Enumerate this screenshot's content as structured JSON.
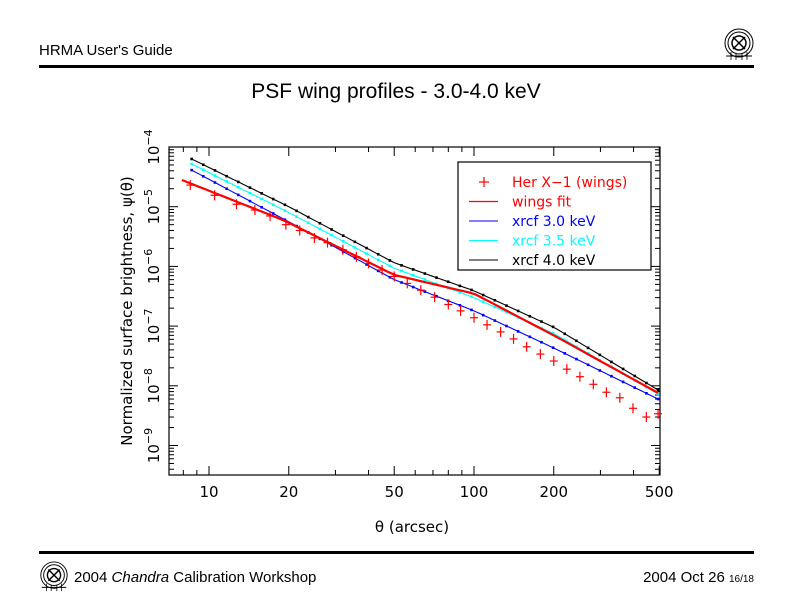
{
  "header": {
    "title": "HRMA User's Guide"
  },
  "slide_title": "PSF wing profiles - 3.0-4.0 keV",
  "footer": {
    "year": "2004",
    "mission": "Chandra",
    "event": "Calibration Workshop",
    "date": "2004 Oct 26",
    "page": "16/18"
  },
  "logo": {
    "name": "chandra-logo-icon"
  },
  "chart_data": {
    "type": "line",
    "title": "PSF wing profiles - 3.0-4.0 keV",
    "xlabel": "θ (arcsec)",
    "ylabel": "Normalized surface brightness, ψ(θ)",
    "xscale": "log",
    "yscale": "log",
    "xlim": [
      7.1,
      500
    ],
    "ylim": [
      5.8e-10,
      0.0001
    ],
    "x_ticks": [
      {
        "value": 10,
        "label": "10"
      },
      {
        "value": 20,
        "label": "20"
      },
      {
        "value": 50,
        "label": "50"
      },
      {
        "value": 100,
        "label": "100"
      },
      {
        "value": 200,
        "label": "200"
      },
      {
        "value": 500,
        "label": "500"
      }
    ],
    "y_ticks": [
      {
        "value": 1e-09,
        "base": "10",
        "exp": "−9"
      },
      {
        "value": 1e-08,
        "base": "10",
        "exp": "−8"
      },
      {
        "value": 1e-07,
        "base": "10",
        "exp": "−7"
      },
      {
        "value": 1e-06,
        "base": "10",
        "exp": "−6"
      },
      {
        "value": 1e-05,
        "base": "10",
        "exp": "−5"
      },
      {
        "value": 0.0001,
        "base": "10",
        "exp": "−4"
      }
    ],
    "legend_position": "top-right",
    "series": [
      {
        "name": "Her X−1 (wings)",
        "style": "points",
        "marker": "+",
        "color": "#ff0000",
        "x": [
          8.5,
          10.5,
          12.7,
          14.9,
          17.0,
          19.5,
          22,
          25,
          28,
          32,
          36,
          40,
          45,
          50,
          56,
          63,
          71,
          80,
          89,
          100,
          112,
          126,
          141,
          158,
          178,
          200,
          224,
          251,
          282,
          316,
          355,
          398,
          447,
          495
        ],
        "y": [
          2.3e-05,
          1.55e-05,
          1.1e-05,
          8.8e-06,
          7e-06,
          5e-06,
          4e-06,
          3e-06,
          2.5e-06,
          1.9e-06,
          1.45e-06,
          1.12e-06,
          8.7e-07,
          6.8e-07,
          5.2e-07,
          4e-07,
          3.05e-07,
          2.3e-07,
          1.8e-07,
          1.38e-07,
          1.05e-07,
          8e-08,
          6.1e-08,
          4.5e-08,
          3.4e-08,
          2.6e-08,
          1.9e-08,
          1.42e-08,
          1.06e-08,
          7.8e-09,
          6.3e-09,
          4.2e-09,
          3e-09,
          3.4e-09
        ]
      },
      {
        "name": "wings fit",
        "style": "line",
        "color": "#ff0000",
        "x": [
          7.9,
          19,
          50,
          100,
          200,
          495
        ],
        "y": [
          2.8e-05,
          6e-06,
          7.2e-07,
          3.5e-07,
          7e-08,
          7.6e-09
        ]
      },
      {
        "name": "xrcf 3.0 keV",
        "style": "line",
        "color": "#0000ff",
        "x": [
          8.6,
          20,
          50,
          100,
          200,
          495
        ],
        "y": [
          4.1e-05,
          5.6e-06,
          6e-07,
          1.8e-07,
          4.3e-08,
          6e-09
        ]
      },
      {
        "name": "xrcf 3.5 keV",
        "style": "line",
        "color": "#00ffff",
        "x": [
          8.6,
          20,
          50,
          100,
          200,
          495
        ],
        "y": [
          5.2e-05,
          8e-06,
          9.3e-07,
          3e-07,
          7.5e-08,
          7.3e-09
        ]
      },
      {
        "name": "xrcf 4.0 keV",
        "style": "line",
        "color": "#000000",
        "x": [
          8.6,
          20,
          50,
          100,
          200,
          495
        ],
        "y": [
          6.3e-05,
          1e-05,
          1.15e-06,
          3.9e-07,
          9.6e-08,
          8.5e-09
        ]
      }
    ]
  }
}
